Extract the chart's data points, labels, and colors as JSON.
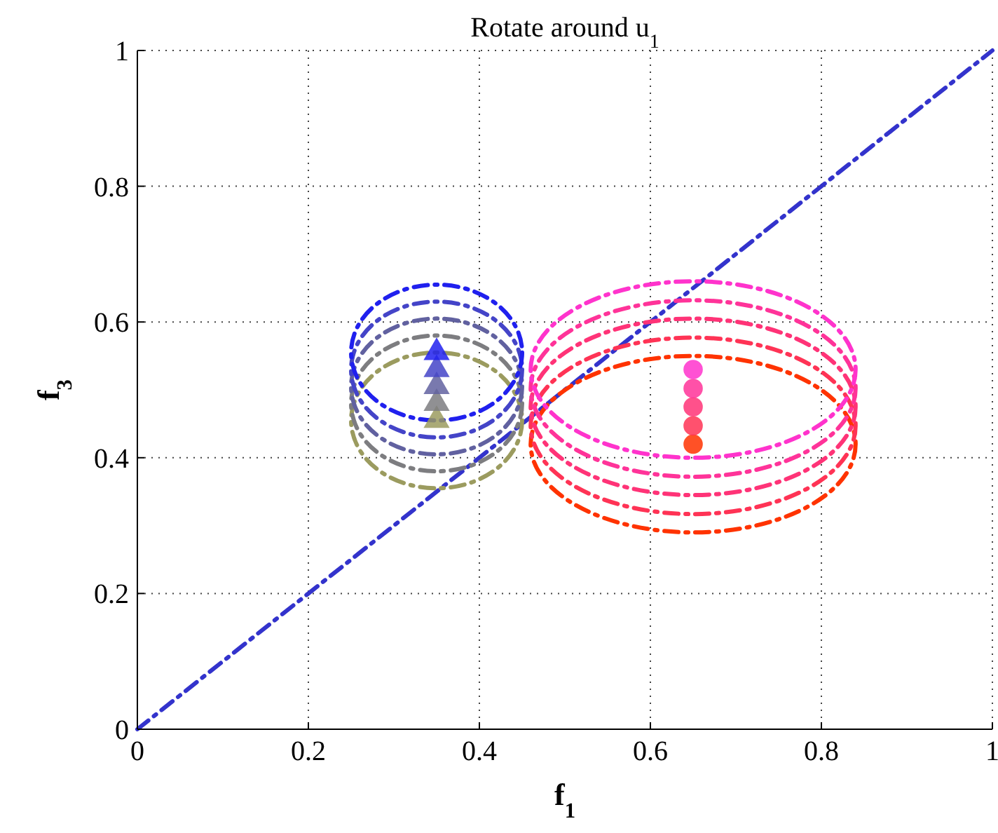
{
  "chart_data": {
    "type": "line",
    "title": "Rotate around u$_{1}$",
    "xlabel": "f$_{1}$",
    "ylabel": "f$_{3}$",
    "xlim": [
      0,
      1
    ],
    "ylim": [
      0,
      1
    ],
    "xticks": [
      0,
      0.2,
      0.4,
      0.6,
      0.8,
      1
    ],
    "yticks": [
      0,
      0.2,
      0.4,
      0.6,
      0.8,
      1
    ],
    "grid": true,
    "line_style": "dashed",
    "marker": "none",
    "series": [
      {
        "color": "#3333cc",
        "x": [
          0,
          1
        ],
        "values": [
          0,
          1
        ]
      },
      {
        "type": "scatter",
        "marker": "triangle",
        "x": [
          0.35,
          0.35,
          0.35,
          0.35,
          0.35
        ],
        "values": [
          0.455,
          0.48,
          0.505,
          0.53,
          0.555
        ],
        "colors": [
          "#9b9b5f",
          "#7d7d80",
          "#6161a0",
          "#4444c8",
          "#2020ee"
        ]
      },
      {
        "type": "scatter",
        "marker": "circle",
        "x": [
          0.65,
          0.65,
          0.65,
          0.65,
          0.65
        ],
        "values": [
          0.42,
          0.447,
          0.475,
          0.502,
          0.53
        ],
        "colors": [
          "#ff3300",
          "#ff3355",
          "#ff3377",
          "#ff3399",
          "#ff33cc"
        ]
      }
    ]
  }
}
